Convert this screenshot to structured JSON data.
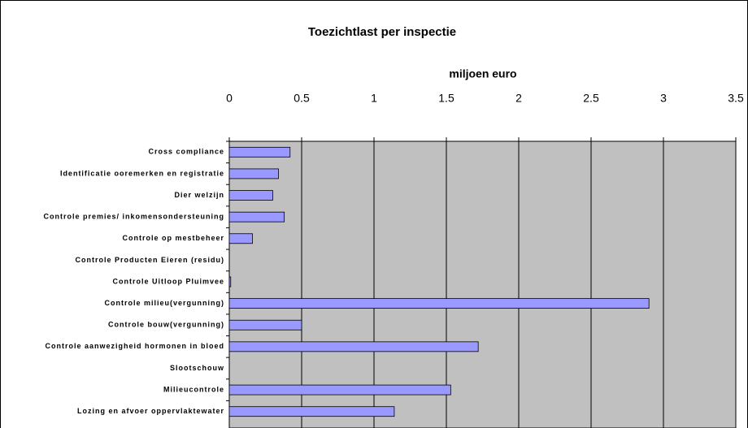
{
  "chart_data": {
    "type": "bar",
    "orientation": "horizontal",
    "title": "Toezichtlast per inspectie",
    "x_label": "miljoen euro",
    "categories": [
      "Cross compliance",
      "Identificatie ooremerken en registratie",
      "Dier welzijn",
      "Controle premies/ inkomensondersteuning",
      "Controle op mestbeheer",
      "Controle Producten Eieren (residu)",
      "Controle Uitloop Pluimvee",
      "Controle milieu(vergunning)",
      "Controle bouw(vergunning)",
      "Controle aanwezigheid hormonen in bloed",
      "Slootschouw",
      "Milieucontrole",
      "Lozing en afvoer oppervlaktewater"
    ],
    "values": [
      0.42,
      0.34,
      0.3,
      0.38,
      0.16,
      0,
      0.01,
      2.9,
      0.5,
      1.72,
      0,
      1.53,
      1.14
    ],
    "color": "#9999ff",
    "xlim": [
      0,
      3.5
    ],
    "xticks": [
      0,
      0.5,
      1,
      1.5,
      2,
      2.5,
      3,
      3.5
    ],
    "grid": true,
    "plot_background": "#c0c0c0"
  }
}
